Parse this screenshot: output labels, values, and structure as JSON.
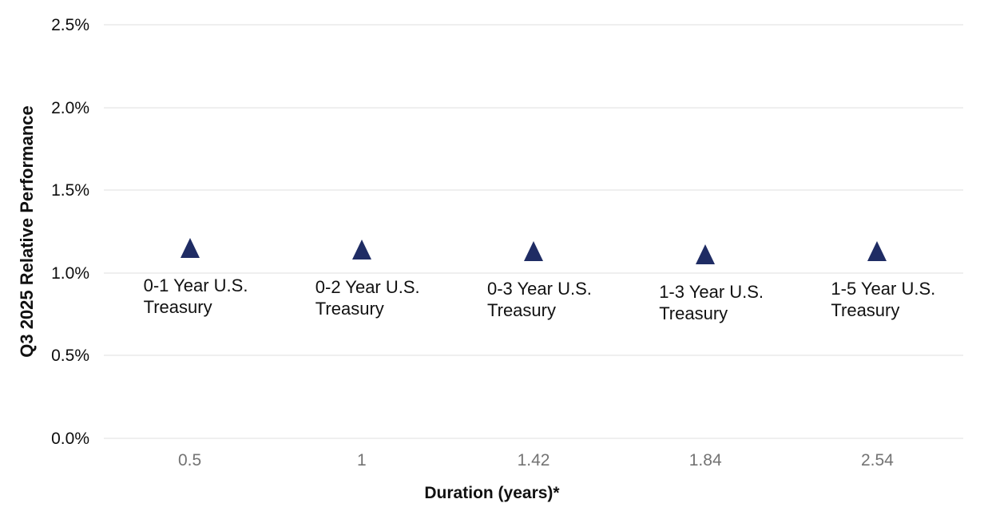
{
  "chart_data": {
    "type": "scatter",
    "title": "",
    "xlabel": "Duration (years)*",
    "ylabel": "Q3 2025 Relative Performance",
    "marker": "triangle-up",
    "grid": "horizontal",
    "legend": "none",
    "ylim": [
      0.0,
      2.5
    ],
    "y_unit": "%",
    "y_ticks": [
      {
        "value": 2.5,
        "label": "2.5%"
      },
      {
        "value": 2.0,
        "label": "2.0%"
      },
      {
        "value": 1.5,
        "label": "1.5%"
      },
      {
        "value": 1.0,
        "label": "1.0%"
      },
      {
        "value": 0.5,
        "label": "0.5%"
      },
      {
        "value": 0.0,
        "label": "0.0%"
      }
    ],
    "points": [
      {
        "label": "0-1 Year U.S. Treasury",
        "x_tick_label": "0.5",
        "duration_years": 0.5,
        "relative_performance_pct": 1.15
      },
      {
        "label": "0-2 Year U.S. Treasury",
        "x_tick_label": "1",
        "duration_years": 1.0,
        "relative_performance_pct": 1.14
      },
      {
        "label": "0-3 Year U.S. Treasury",
        "x_tick_label": "1.42",
        "duration_years": 1.42,
        "relative_performance_pct": 1.13
      },
      {
        "label": "1-3 Year U.S. Treasury",
        "x_tick_label": "1.84",
        "duration_years": 1.84,
        "relative_performance_pct": 1.11
      },
      {
        "label": "1-5 Year U.S. Treasury",
        "x_tick_label": "2.54",
        "duration_years": 2.54,
        "relative_performance_pct": 1.13
      }
    ],
    "colors": {
      "marker": "#1f2c64",
      "gridline": "#efefef",
      "x_tick_text": "#737373",
      "y_tick_text": "#0d0d0d",
      "axis_title_text": "#111111",
      "background": "#ffffff"
    },
    "layout_note": "points equally spaced horizontally; x tick labels show duration values"
  }
}
